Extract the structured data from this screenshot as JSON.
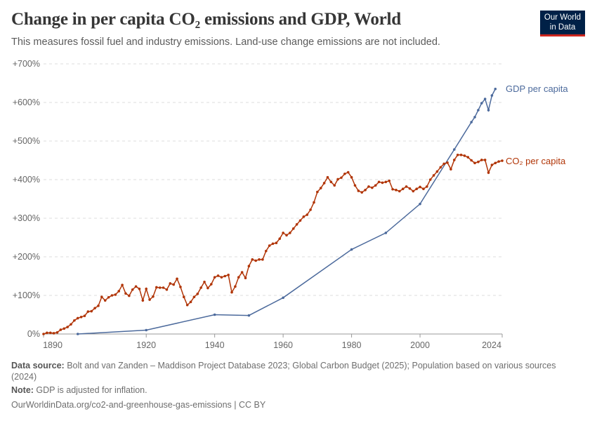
{
  "header": {
    "title": "Change in per capita CO₂ emissions and GDP, World",
    "subtitle": "This measures fossil fuel and industry emissions. Land-use change emissions are not included.",
    "logo_line1": "Our World",
    "logo_line2": "in Data"
  },
  "chart_data": {
    "type": "line",
    "title": "Change in per capita CO₂ emissions and GDP, World",
    "ylim": [
      0,
      700
    ],
    "yticks": [
      0,
      100,
      200,
      300,
      400,
      500,
      600,
      700
    ],
    "ytick_labels": [
      "0%",
      "+100%",
      "+200%",
      "+300%",
      "+400%",
      "+500%",
      "+600%",
      "+700%"
    ],
    "xlim": [
      1890,
      2024
    ],
    "xticks": [
      1890,
      1920,
      1940,
      1960,
      1980,
      2000,
      2024
    ],
    "xtick_labels": [
      "1890",
      "1920",
      "1940",
      "1960",
      "1980",
      "2000",
      "2024"
    ],
    "grid": true,
    "legend": "inline-right",
    "series": [
      {
        "name": "GDP per capita",
        "color": "#4c6a9c",
        "x": [
          1900,
          1920,
          1940,
          1950,
          1960,
          1980,
          1990,
          2000,
          2010,
          2015,
          2016,
          2017,
          2018,
          2019,
          2020,
          2021,
          2022
        ],
        "values": [
          0,
          10,
          50,
          48,
          94,
          219,
          262,
          337,
          478,
          549,
          562,
          580,
          598,
          609,
          580,
          618,
          635
        ]
      },
      {
        "name": "CO₂ per capita",
        "color": "#b13507",
        "x_start": 1890,
        "x_end": 2024,
        "values": [
          0,
          3,
          3,
          2,
          4,
          11,
          14,
          18,
          25,
          35,
          41,
          44,
          47,
          58,
          59,
          67,
          73,
          96,
          87,
          95,
          100,
          102,
          111,
          127,
          105,
          99,
          115,
          123,
          117,
          87,
          117,
          89,
          97,
          121,
          120,
          120,
          115,
          131,
          128,
          143,
          122,
          96,
          75,
          83,
          96,
          104,
          120,
          135,
          119,
          129,
          147,
          151,
          147,
          150,
          153,
          108,
          123,
          147,
          160,
          145,
          176,
          193,
          190,
          193,
          193,
          215,
          229,
          234,
          236,
          247,
          262,
          256,
          262,
          273,
          284,
          294,
          304,
          309,
          322,
          341,
          368,
          378,
          391,
          406,
          394,
          385,
          401,
          405,
          415,
          419,
          406,
          385,
          371,
          367,
          373,
          382,
          379,
          385,
          394,
          392,
          394,
          397,
          375,
          373,
          370,
          376,
          382,
          377,
          370,
          376,
          381,
          376,
          382,
          400,
          411,
          421,
          432,
          441,
          444,
          427,
          451,
          464,
          464,
          462,
          458,
          450,
          443,
          446,
          451,
          451,
          418,
          438,
          443,
          447,
          449
        ]
      }
    ]
  },
  "footer": {
    "source_label": "Data source:",
    "source_text": " Bolt and van Zanden – Maddison Project Database 2023; Global Carbon Budget (2025); Population based on various sources (2024)",
    "note_label": "Note:",
    "note_text": " GDP is adjusted for inflation.",
    "url": "OurWorldinData.org/co2-and-greenhouse-gas-emissions | CC BY"
  }
}
